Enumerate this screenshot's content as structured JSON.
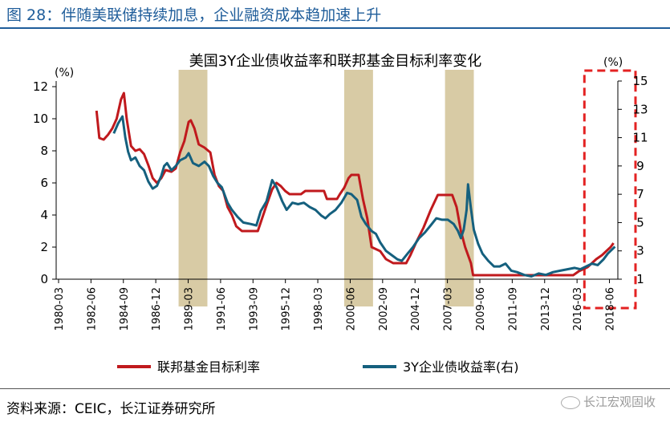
{
  "figure": {
    "title": "图 28：伴随美联储持续加息，企业融资成本趋加速上升",
    "source": "资料来源：CEIC，长江证券研究所",
    "watermark": "长江宏观固收"
  },
  "colors": {
    "title_blue": "#1f5d9a",
    "fed_red": "#c0191d",
    "corp_blue": "#15607e",
    "shade": "#d8cba5",
    "highlight": "#e32222"
  },
  "chart_data": {
    "type": "line",
    "title": "美国3Y企业债收益率和联邦基金目标利率变化",
    "left_axis": {
      "label": "(%)",
      "ylim": [
        0,
        12
      ],
      "ticks": [
        0,
        2,
        4,
        6,
        8,
        10,
        12
      ]
    },
    "right_axis": {
      "label": "(%)",
      "ylim": [
        1,
        15
      ],
      "ticks": [
        1,
        3,
        5,
        7,
        9,
        11,
        13,
        15
      ]
    },
    "x_axis": {
      "range": [
        1980.0,
        2019.0
      ],
      "tick_labels": [
        "1980-03",
        "1982-06",
        "1984-09",
        "1986-12",
        "1989-03",
        "1991-06",
        "1993-09",
        "1995-12",
        "1998-03",
        "2000-06",
        "2002-09",
        "2004-12",
        "2007-03",
        "2009-06",
        "2011-09",
        "2013-12",
        "2016-03",
        "2018-06"
      ]
    },
    "shaded_periods": [
      [
        1988.5,
        1990.5
      ],
      [
        2000.0,
        2002.0
      ],
      [
        2007.0,
        2009.0
      ]
    ],
    "highlight_box": [
      2016.9,
      2019.0
    ],
    "legend": {
      "position": "bottom",
      "entries": [
        "联邦基金目标利率",
        "3Y企业债收益率(右)"
      ]
    },
    "series": [
      {
        "name": "联邦基金目标利率",
        "axis": "left",
        "points": [
          [
            1982.8,
            10.5
          ],
          [
            1983.0,
            8.8
          ],
          [
            1983.3,
            8.7
          ],
          [
            1983.6,
            9.0
          ],
          [
            1983.9,
            9.4
          ],
          [
            1984.2,
            10.0
          ],
          [
            1984.5,
            11.2
          ],
          [
            1984.7,
            11.6
          ],
          [
            1984.9,
            10.0
          ],
          [
            1985.2,
            8.3
          ],
          [
            1985.5,
            8.0
          ],
          [
            1985.8,
            8.1
          ],
          [
            1986.1,
            7.8
          ],
          [
            1986.4,
            7.1
          ],
          [
            1986.7,
            6.3
          ],
          [
            1987.0,
            6.0
          ],
          [
            1987.3,
            6.3
          ],
          [
            1987.6,
            6.8
          ],
          [
            1988.0,
            6.7
          ],
          [
            1988.3,
            6.9
          ],
          [
            1988.6,
            7.9
          ],
          [
            1988.9,
            8.6
          ],
          [
            1989.2,
            9.8
          ],
          [
            1989.35,
            9.9
          ],
          [
            1989.6,
            9.4
          ],
          [
            1989.9,
            8.4
          ],
          [
            1990.3,
            8.2
          ],
          [
            1990.7,
            7.9
          ],
          [
            1991.0,
            6.5
          ],
          [
            1991.3,
            5.8
          ],
          [
            1991.6,
            5.5
          ],
          [
            1991.9,
            4.5
          ],
          [
            1992.2,
            4.0
          ],
          [
            1992.5,
            3.3
          ],
          [
            1992.9,
            3.0
          ],
          [
            1993.5,
            3.0
          ],
          [
            1994.0,
            3.0
          ],
          [
            1994.3,
            3.8
          ],
          [
            1994.6,
            4.6
          ],
          [
            1995.0,
            5.6
          ],
          [
            1995.3,
            6.0
          ],
          [
            1995.6,
            5.8
          ],
          [
            1995.9,
            5.5
          ],
          [
            1996.2,
            5.3
          ],
          [
            1997.0,
            5.3
          ],
          [
            1997.3,
            5.5
          ],
          [
            1998.0,
            5.5
          ],
          [
            1998.6,
            5.5
          ],
          [
            1998.8,
            5.0
          ],
          [
            1999.5,
            5.0
          ],
          [
            1999.7,
            5.3
          ],
          [
            2000.0,
            5.7
          ],
          [
            2000.3,
            6.3
          ],
          [
            2000.5,
            6.5
          ],
          [
            2001.0,
            6.5
          ],
          [
            2001.3,
            5.0
          ],
          [
            2001.6,
            3.8
          ],
          [
            2001.9,
            2.0
          ],
          [
            2002.5,
            1.75
          ],
          [
            2002.9,
            1.25
          ],
          [
            2003.4,
            1.0
          ],
          [
            2004.3,
            1.0
          ],
          [
            2004.6,
            1.5
          ],
          [
            2005.0,
            2.3
          ],
          [
            2005.5,
            3.2
          ],
          [
            2006.0,
            4.3
          ],
          [
            2006.5,
            5.25
          ],
          [
            2007.5,
            5.25
          ],
          [
            2007.8,
            4.5
          ],
          [
            2008.1,
            3.0
          ],
          [
            2008.4,
            2.0
          ],
          [
            2008.8,
            1.0
          ],
          [
            2008.95,
            0.25
          ],
          [
            2015.9,
            0.25
          ],
          [
            2016.3,
            0.5
          ],
          [
            2016.9,
            0.75
          ],
          [
            2017.2,
            1.0
          ],
          [
            2017.5,
            1.25
          ],
          [
            2017.9,
            1.5
          ],
          [
            2018.2,
            1.75
          ],
          [
            2018.5,
            2.0
          ],
          [
            2018.7,
            2.25
          ]
        ]
      },
      {
        "name": "3Y企业债收益率(右)",
        "axis": "right",
        "points": [
          [
            1984.0,
            11.3
          ],
          [
            1984.3,
            12.0
          ],
          [
            1984.6,
            12.5
          ],
          [
            1984.8,
            11.0
          ],
          [
            1985.0,
            10.0
          ],
          [
            1985.2,
            9.4
          ],
          [
            1985.5,
            9.6
          ],
          [
            1985.8,
            9.0
          ],
          [
            1986.1,
            8.7
          ],
          [
            1986.4,
            7.9
          ],
          [
            1986.7,
            7.4
          ],
          [
            1987.0,
            7.6
          ],
          [
            1987.3,
            8.3
          ],
          [
            1987.5,
            9.0
          ],
          [
            1987.7,
            9.2
          ],
          [
            1988.0,
            8.7
          ],
          [
            1988.3,
            9.0
          ],
          [
            1988.6,
            9.4
          ],
          [
            1989.0,
            9.6
          ],
          [
            1989.2,
            9.9
          ],
          [
            1989.5,
            9.2
          ],
          [
            1989.9,
            9.0
          ],
          [
            1990.3,
            9.3
          ],
          [
            1990.6,
            9.0
          ],
          [
            1990.9,
            8.3
          ],
          [
            1991.2,
            7.8
          ],
          [
            1991.5,
            7.5
          ],
          [
            1991.9,
            6.4
          ],
          [
            1992.2,
            5.9
          ],
          [
            1992.6,
            5.4
          ],
          [
            1993.0,
            5.0
          ],
          [
            1993.5,
            4.9
          ],
          [
            1993.9,
            4.8
          ],
          [
            1994.2,
            5.8
          ],
          [
            1994.6,
            6.5
          ],
          [
            1995.0,
            8.0
          ],
          [
            1995.3,
            7.5
          ],
          [
            1995.7,
            6.5
          ],
          [
            1996.0,
            5.9
          ],
          [
            1996.4,
            6.4
          ],
          [
            1996.8,
            6.3
          ],
          [
            1997.2,
            6.4
          ],
          [
            1997.6,
            6.1
          ],
          [
            1998.0,
            5.9
          ],
          [
            1998.4,
            5.5
          ],
          [
            1998.7,
            5.3
          ],
          [
            1999.0,
            5.6
          ],
          [
            1999.4,
            5.9
          ],
          [
            1999.8,
            6.4
          ],
          [
            2000.2,
            7.1
          ],
          [
            2000.5,
            7.0
          ],
          [
            2000.9,
            6.6
          ],
          [
            2001.2,
            5.4
          ],
          [
            2001.5,
            4.9
          ],
          [
            2001.9,
            4.4
          ],
          [
            2002.2,
            4.2
          ],
          [
            2002.5,
            3.6
          ],
          [
            2002.9,
            3.0
          ],
          [
            2003.3,
            2.7
          ],
          [
            2003.7,
            2.4
          ],
          [
            2004.0,
            2.3
          ],
          [
            2004.4,
            2.8
          ],
          [
            2004.8,
            3.3
          ],
          [
            2005.2,
            3.9
          ],
          [
            2005.6,
            4.3
          ],
          [
            2006.0,
            4.8
          ],
          [
            2006.4,
            5.3
          ],
          [
            2006.8,
            5.2
          ],
          [
            2007.2,
            5.2
          ],
          [
            2007.6,
            4.9
          ],
          [
            2007.9,
            4.4
          ],
          [
            2008.1,
            3.9
          ],
          [
            2008.3,
            4.5
          ],
          [
            2008.5,
            5.9
          ],
          [
            2008.6,
            7.7
          ],
          [
            2008.8,
            6.0
          ],
          [
            2009.0,
            4.5
          ],
          [
            2009.3,
            3.5
          ],
          [
            2009.6,
            2.8
          ],
          [
            2010.0,
            2.3
          ],
          [
            2010.4,
            1.9
          ],
          [
            2010.8,
            1.9
          ],
          [
            2011.2,
            2.1
          ],
          [
            2011.6,
            1.6
          ],
          [
            2012.0,
            1.5
          ],
          [
            2012.5,
            1.3
          ],
          [
            2013.0,
            1.2
          ],
          [
            2013.5,
            1.4
          ],
          [
            2014.0,
            1.3
          ],
          [
            2014.5,
            1.5
          ],
          [
            2015.0,
            1.6
          ],
          [
            2015.5,
            1.7
          ],
          [
            2016.0,
            1.8
          ],
          [
            2016.4,
            1.7
          ],
          [
            2016.8,
            1.9
          ],
          [
            2017.2,
            2.1
          ],
          [
            2017.6,
            2.0
          ],
          [
            2018.0,
            2.4
          ],
          [
            2018.3,
            2.8
          ],
          [
            2018.6,
            3.1
          ],
          [
            2018.8,
            3.3
          ]
        ]
      }
    ]
  }
}
